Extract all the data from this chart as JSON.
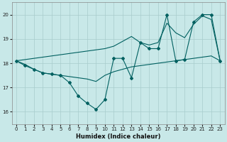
{
  "xlabel": "Humidex (Indice chaleur)",
  "bg_color": "#c8e8e8",
  "grid_color": "#a8cccc",
  "line_color": "#006060",
  "xlim_min": -0.5,
  "xlim_max": 23.5,
  "ylim_min": 15.5,
  "ylim_max": 20.5,
  "yticks": [
    16,
    17,
    18,
    19,
    20
  ],
  "xticks": [
    0,
    1,
    2,
    3,
    4,
    5,
    6,
    7,
    8,
    9,
    10,
    11,
    12,
    13,
    14,
    15,
    16,
    17,
    18,
    19,
    20,
    21,
    22,
    23
  ],
  "line_zigzag_x": [
    0,
    1,
    2,
    3,
    4,
    5,
    6,
    7,
    8,
    9,
    10,
    11,
    12,
    13,
    14,
    15,
    16,
    17,
    18,
    19,
    20,
    21,
    22,
    23
  ],
  "line_zigzag_y": [
    18.1,
    17.9,
    17.75,
    17.6,
    17.55,
    17.5,
    17.2,
    16.65,
    16.35,
    16.1,
    16.5,
    18.2,
    18.2,
    17.4,
    18.85,
    18.6,
    18.6,
    20.0,
    18.1,
    18.15,
    19.7,
    20.0,
    20.0,
    18.1
  ],
  "line_upper_x": [
    0,
    10,
    11,
    12,
    13,
    14,
    15,
    16,
    17,
    18,
    19,
    20,
    21,
    22,
    23
  ],
  "line_upper_y": [
    18.1,
    18.6,
    18.7,
    18.9,
    19.1,
    18.85,
    18.75,
    18.85,
    19.65,
    19.25,
    19.05,
    19.6,
    19.95,
    19.8,
    18.1
  ],
  "line_flat_x": [
    0,
    1,
    2,
    3,
    4,
    5,
    6,
    7,
    8,
    9,
    10,
    11,
    12,
    13,
    14,
    15,
    16,
    17,
    18,
    19,
    20,
    21,
    22,
    23
  ],
  "line_flat_y": [
    18.1,
    17.95,
    17.75,
    17.6,
    17.55,
    17.5,
    17.45,
    17.4,
    17.35,
    17.25,
    17.5,
    17.65,
    17.75,
    17.85,
    17.9,
    17.95,
    18.0,
    18.05,
    18.1,
    18.15,
    18.2,
    18.25,
    18.3,
    18.1
  ]
}
